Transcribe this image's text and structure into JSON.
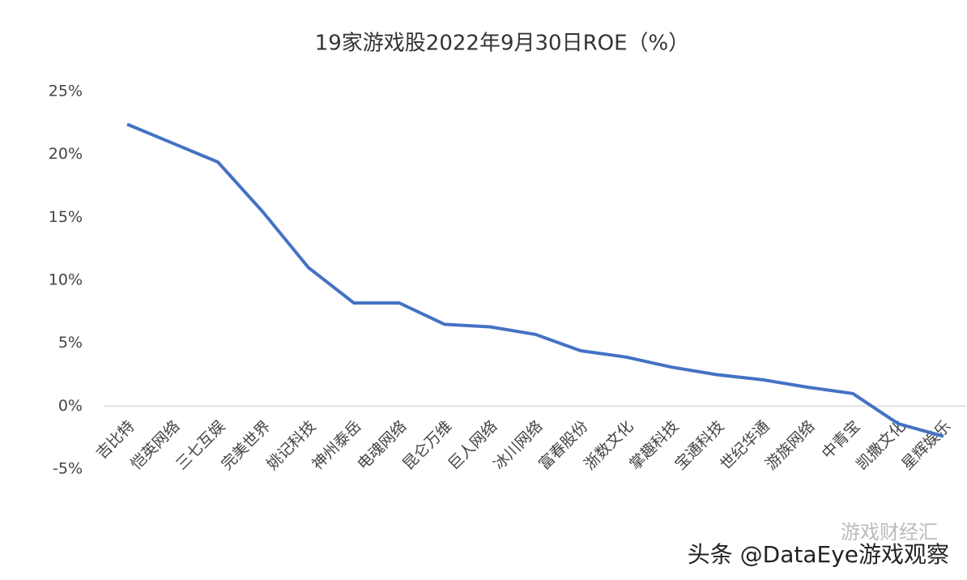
{
  "chart_data": {
    "type": "line",
    "title": "19家游戏股2022年9月30日ROE（%）",
    "categories": [
      "吉比特",
      "恺英网络",
      "三七互娱",
      "完美世界",
      "姚记科技",
      "神州泰岳",
      "电魂网络",
      "昆仑万维",
      "巨人网络",
      "冰川网络",
      "富春股份",
      "浙数文化",
      "掌趣科技",
      "宝通科技",
      "世纪华通",
      "游族网络",
      "中青宝",
      "凯撒文化",
      "星辉娱乐"
    ],
    "series": [
      {
        "name": "ROE",
        "color": "#4472c4",
        "values": [
          22.4,
          20.9,
          19.4,
          15.4,
          11.0,
          8.2,
          8.2,
          6.5,
          6.3,
          5.7,
          4.4,
          3.9,
          3.1,
          2.5,
          2.1,
          1.5,
          1.0,
          -1.4,
          -2.4
        ]
      }
    ],
    "ylim": [
      -5,
      25
    ],
    "yticks": [
      {
        "value": -5,
        "label": "-5%"
      },
      {
        "value": 0,
        "label": "0%"
      },
      {
        "value": 5,
        "label": "5%"
      },
      {
        "value": 10,
        "label": "10%"
      },
      {
        "value": 15,
        "label": "15%"
      },
      {
        "value": 20,
        "label": "20%"
      },
      {
        "value": 25,
        "label": "25%"
      }
    ]
  },
  "watermark": {
    "account": "游戏财经汇",
    "source": "头条 @DataEye游戏观察"
  }
}
